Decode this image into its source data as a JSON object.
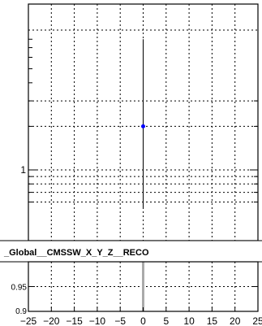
{
  "chart_data": [
    {
      "type": "scatter",
      "panel": "main",
      "title": "",
      "xlabel": "",
      "ylabel": "",
      "yscale": "log",
      "ytick_labels": [
        "1"
      ],
      "grid": true,
      "point": {
        "x": 0,
        "y": 2.0
      },
      "error_bar": [
        0.55,
        8.0
      ],
      "marker_color": "#0000ff"
    },
    {
      "type": "bar",
      "panel": "ratio",
      "label_text": "_Global__CMSSW_X_Y_Z__RECO",
      "ylim": [
        0.9,
        1.0
      ],
      "ytick_labels": [
        "0.9",
        "0.95"
      ],
      "xlim": [
        -25,
        25
      ],
      "xtick_labels": [
        "−25",
        "−20",
        "−15",
        "−10",
        "−5",
        "0",
        "5",
        "10",
        "15",
        "20",
        "25"
      ],
      "grid": true,
      "bar": {
        "x": 0,
        "value": 1.0
      },
      "bar_color": "#aaaaaa"
    }
  ]
}
